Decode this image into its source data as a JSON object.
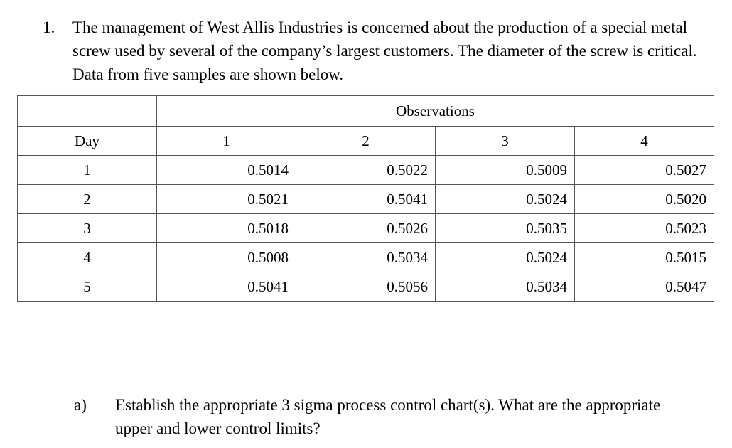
{
  "problem": {
    "number": "1.",
    "text": "The management of West Allis Industries is concerned about the production of a special metal screw used by several of the company’s largest customers. The diameter of the screw is critical.  Data from five samples are shown below."
  },
  "table": {
    "group_header": "Observations",
    "day_header": "Day",
    "observation_headers": [
      "1",
      "2",
      "3",
      "4"
    ],
    "rows": [
      {
        "day": "1",
        "values": [
          "0.5014",
          "0.5022",
          "0.5009",
          "0.5027"
        ]
      },
      {
        "day": "2",
        "values": [
          "0.5021",
          "0.5041",
          "0.5024",
          "0.5020"
        ]
      },
      {
        "day": "3",
        "values": [
          "0.5018",
          "0.5026",
          "0.5035",
          "0.5023"
        ]
      },
      {
        "day": "4",
        "values": [
          "0.5008",
          "0.5034",
          "0.5024",
          "0.5015"
        ]
      },
      {
        "day": "5",
        "values": [
          "0.5041",
          "0.5056",
          "0.5034",
          "0.5047"
        ]
      }
    ]
  },
  "part_a": {
    "label": "a)",
    "text": "Establish the appropriate 3 sigma process control chart(s).  What are the appropriate upper and lower control limits?"
  }
}
